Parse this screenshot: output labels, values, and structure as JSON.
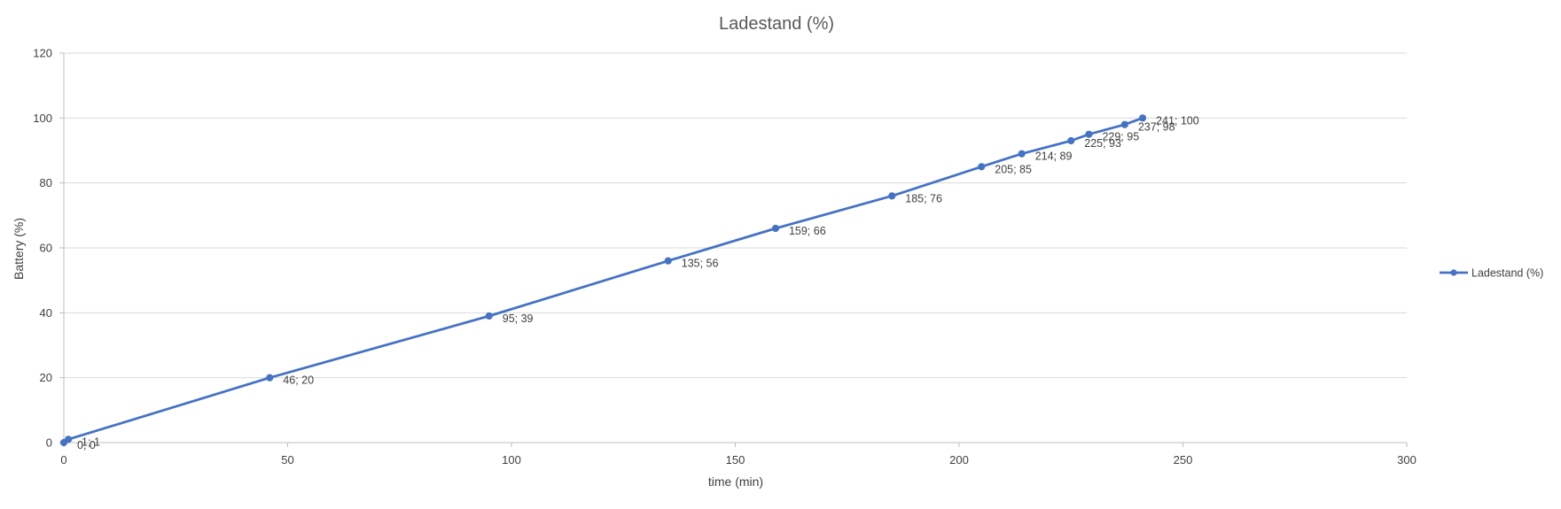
{
  "chart_data": {
    "type": "scatter",
    "title": "Ladestand (%)",
    "xlabel": "time (min)",
    "ylabel": "Battery (%)",
    "xlim": [
      0,
      300
    ],
    "ylim": [
      0,
      120
    ],
    "x_ticks": [
      0,
      50,
      100,
      150,
      200,
      250,
      300
    ],
    "y_ticks": [
      0,
      20,
      40,
      60,
      80,
      100,
      120
    ],
    "grid": "horizontal",
    "legend_position": "right",
    "line_style": "straight lines with markers",
    "series": [
      {
        "name": "Ladestand (%)",
        "color": "#4472c4",
        "points": [
          {
            "x": 0,
            "y": 0,
            "label": "0; 0"
          },
          {
            "x": 1,
            "y": 1,
            "label": "1; 1"
          },
          {
            "x": 46,
            "y": 20,
            "label": "46; 20"
          },
          {
            "x": 95,
            "y": 39,
            "label": "95; 39"
          },
          {
            "x": 135,
            "y": 56,
            "label": "135; 56"
          },
          {
            "x": 159,
            "y": 66,
            "label": "159; 66"
          },
          {
            "x": 185,
            "y": 76,
            "label": "185; 76"
          },
          {
            "x": 205,
            "y": 85,
            "label": "205; 85"
          },
          {
            "x": 214,
            "y": 89,
            "label": "214; 89"
          },
          {
            "x": 225,
            "y": 93,
            "label": "225; 93"
          },
          {
            "x": 229,
            "y": 95,
            "label": "229; 95"
          },
          {
            "x": 237,
            "y": 98,
            "label": "237; 98"
          },
          {
            "x": 241,
            "y": 100,
            "label": "241; 100"
          }
        ]
      }
    ]
  }
}
